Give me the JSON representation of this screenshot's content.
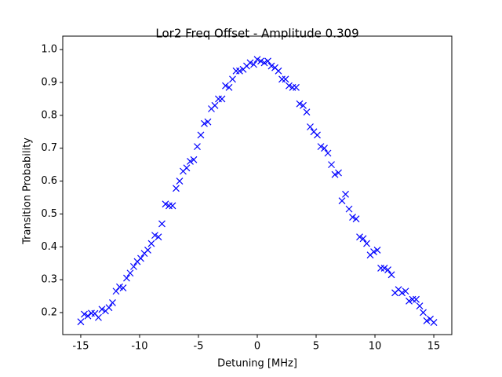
{
  "chart_data": {
    "type": "scatter",
    "title": "Lor2 Freq Offset - Amplitude 0.309",
    "x_label": "Detuning [MHz]",
    "y_label": "Transition Probability",
    "color": "#0000ff",
    "marker": "x",
    "x": [
      -15,
      -14.7,
      -14.4,
      -14.1,
      -13.8,
      -13.5,
      -13.2,
      -12.9,
      -12.6,
      -12.3,
      -12,
      -11.7,
      -11.4,
      -11.1,
      -10.8,
      -10.5,
      -10.2,
      -9.9,
      -9.6,
      -9.3,
      -9,
      -8.7,
      -8.4,
      -8.1,
      -7.8,
      -7.5,
      -7.2,
      -6.9,
      -6.6,
      -6.3,
      -6,
      -5.7,
      -5.4,
      -5.1,
      -4.8,
      -4.5,
      -4.2,
      -3.9,
      -3.6,
      -3.3,
      -3,
      -2.7,
      -2.4,
      -2.1,
      -1.8,
      -1.5,
      -1.2,
      -0.9,
      -0.6,
      -0.3,
      0,
      0.3,
      0.6,
      0.9,
      1.2,
      1.5,
      1.8,
      2.1,
      2.4,
      2.7,
      3,
      3.3,
      3.6,
      3.9,
      4.2,
      4.5,
      4.8,
      5.1,
      5.4,
      5.7,
      6,
      6.3,
      6.6,
      6.9,
      7.2,
      7.5,
      7.8,
      8.1,
      8.4,
      8.7,
      9,
      9.3,
      9.6,
      9.9,
      10.2,
      10.5,
      10.8,
      11.1,
      11.4,
      11.7,
      12,
      12.3,
      12.6,
      12.9,
      13.2,
      13.5,
      13.8,
      14.1,
      14.4,
      14.7,
      15
    ],
    "values": [
      0.172,
      0.195,
      0.19,
      0.198,
      0.197,
      0.185,
      0.21,
      0.205,
      0.215,
      0.23,
      0.265,
      0.278,
      0.275,
      0.305,
      0.32,
      0.34,
      0.355,
      0.365,
      0.38,
      0.39,
      0.41,
      0.435,
      0.43,
      0.47,
      0.53,
      0.525,
      0.525,
      0.578,
      0.6,
      0.63,
      0.64,
      0.66,
      0.665,
      0.705,
      0.74,
      0.775,
      0.78,
      0.82,
      0.83,
      0.85,
      0.85,
      0.89,
      0.885,
      0.91,
      0.935,
      0.935,
      0.94,
      0.95,
      0.96,
      0.955,
      0.97,
      0.965,
      0.96,
      0.965,
      0.95,
      0.945,
      0.935,
      0.91,
      0.91,
      0.89,
      0.885,
      0.885,
      0.835,
      0.83,
      0.81,
      0.765,
      0.75,
      0.74,
      0.705,
      0.7,
      0.685,
      0.65,
      0.62,
      0.625,
      0.54,
      0.56,
      0.515,
      0.49,
      0.485,
      0.43,
      0.425,
      0.41,
      0.375,
      0.385,
      0.39,
      0.335,
      0.335,
      0.33,
      0.315,
      0.26,
      0.27,
      0.26,
      0.265,
      0.235,
      0.24,
      0.24,
      0.22,
      0.2,
      0.175,
      0.18,
      0.17
    ],
    "xlim": [
      -16.53,
      16.53
    ],
    "ylim": [
      0.133,
      1.041
    ],
    "xticks": [
      -15,
      -10,
      -5,
      0,
      5,
      10,
      15
    ],
    "yticks": [
      0.2,
      0.3,
      0.4,
      0.5,
      0.6,
      0.7,
      0.8,
      0.9,
      {
        "value": 1,
        "label": "1.0"
      }
    ]
  }
}
